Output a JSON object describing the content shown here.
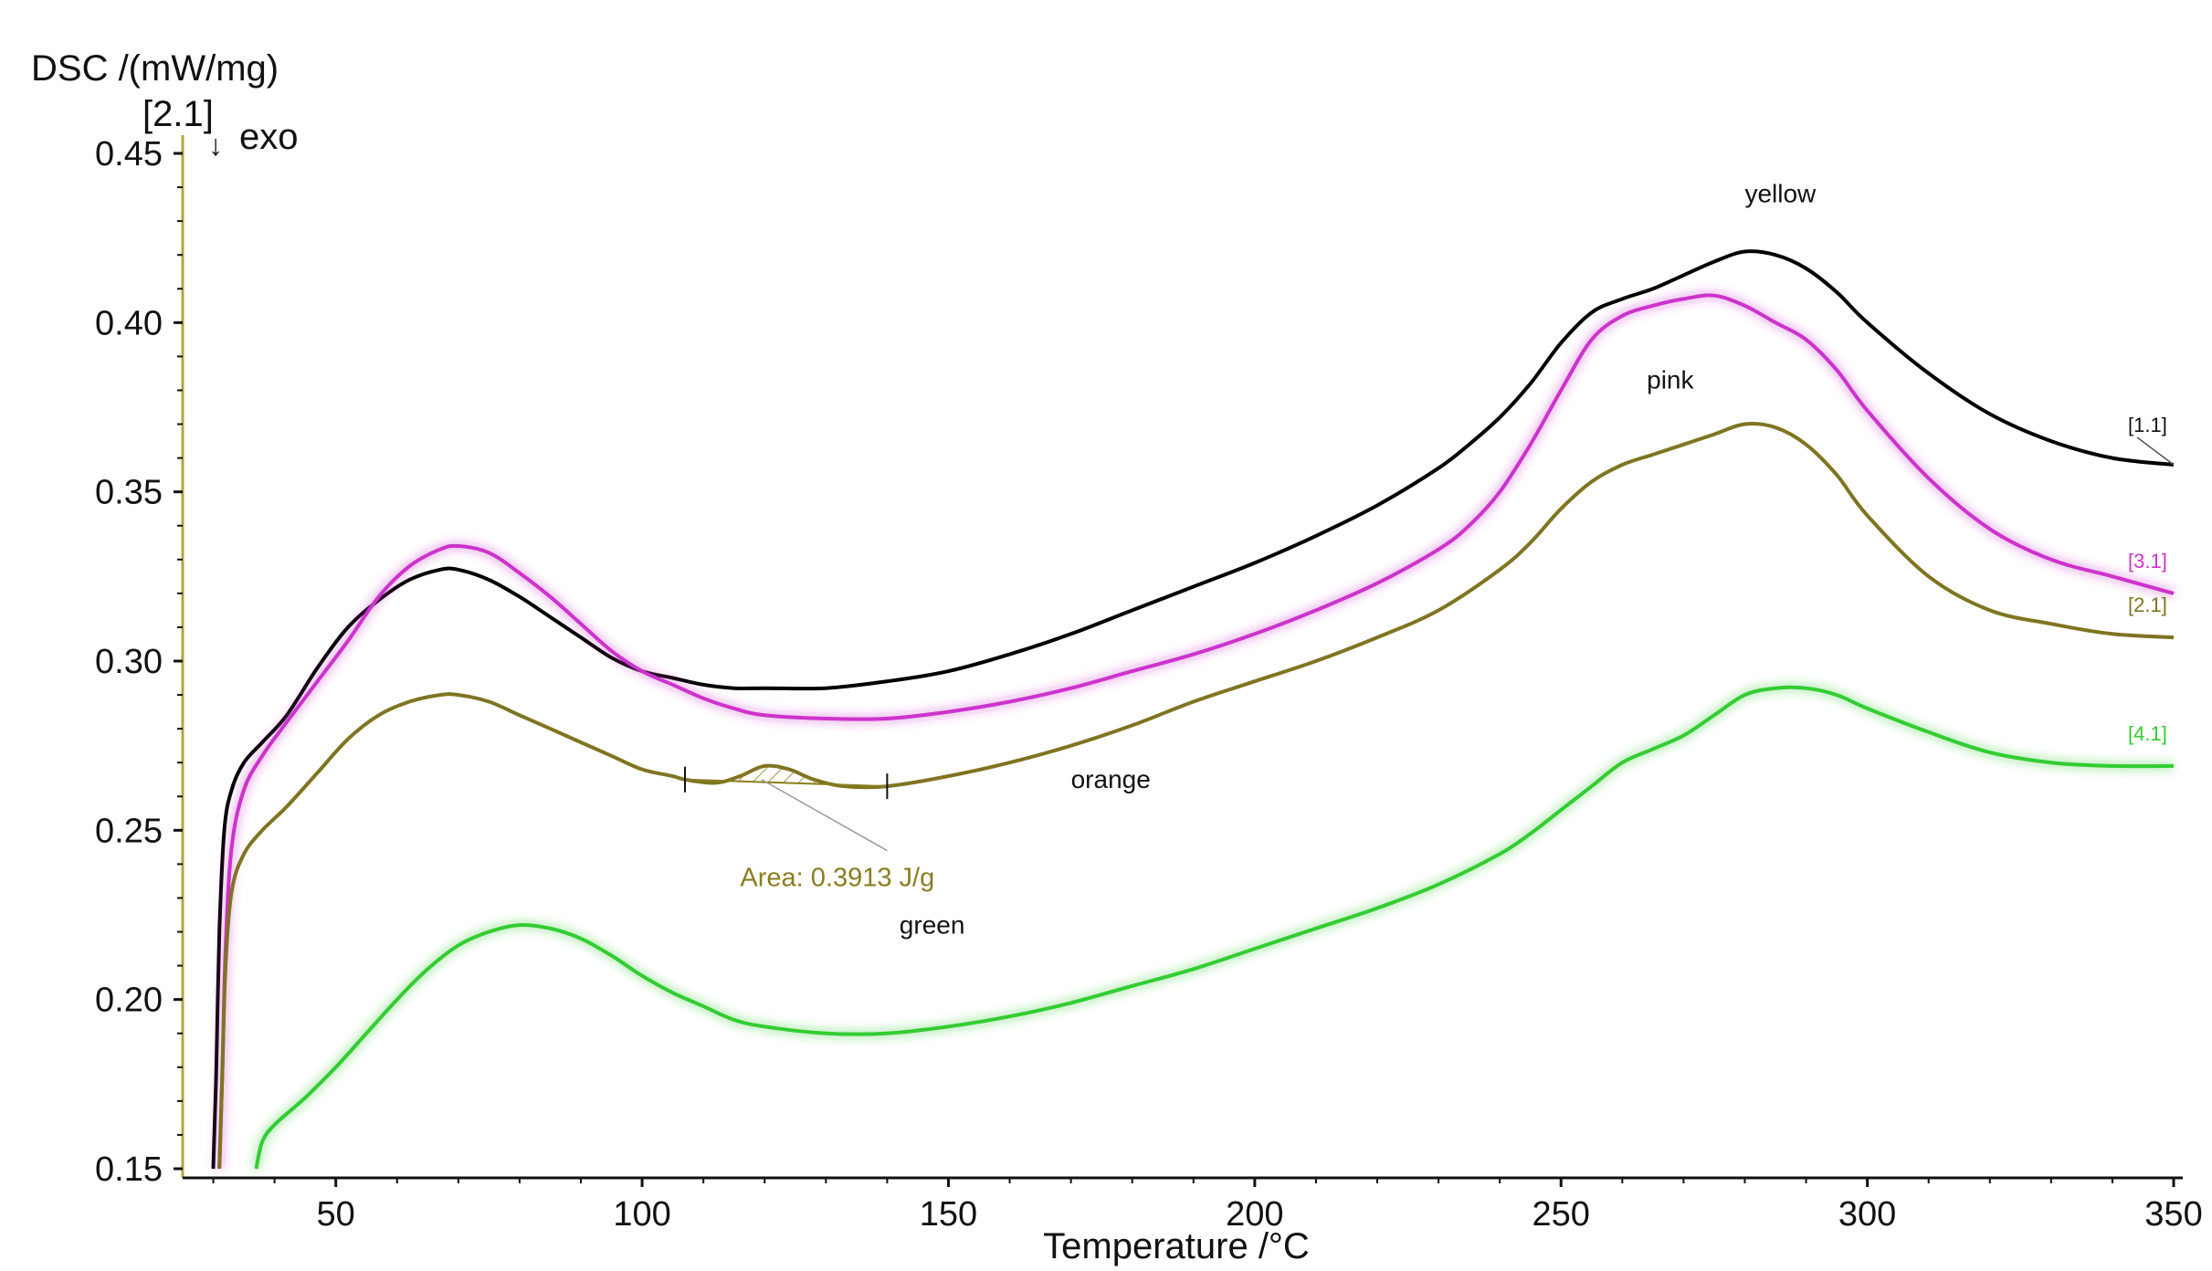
{
  "chart_data": {
    "type": "line",
    "ylabel": "DSC /(mW/mg)",
    "xlabel": "Temperature /°C",
    "exo_marker": {
      "tag": "[2.1]",
      "arrow": "↓",
      "label": "exo"
    },
    "xlim": [
      25,
      350
    ],
    "ylim": [
      0.15,
      0.45
    ],
    "xticks": [
      50,
      100,
      150,
      200,
      250,
      300,
      350
    ],
    "yticks": [
      0.15,
      0.2,
      0.25,
      0.3,
      0.35,
      0.4,
      0.45
    ],
    "ytick_labels": [
      "0.15",
      "0.20",
      "0.25",
      "0.30",
      "0.35",
      "0.40",
      "0.45"
    ],
    "grid": false,
    "axis_color": "#b3a640",
    "series": [
      {
        "tag": "[1.1]",
        "label": "yellow",
        "color": "#000000",
        "glow": false,
        "x": [
          30,
          30.5,
          31,
          31.8,
          33,
          35,
          38,
          42,
          47,
          52,
          57,
          62,
          67,
          70,
          75,
          80,
          85,
          90,
          95,
          100,
          105,
          110,
          115,
          120,
          130,
          140,
          150,
          160,
          170,
          180,
          190,
          200,
          210,
          220,
          230,
          235,
          240,
          245,
          250,
          255,
          260,
          265,
          270,
          275,
          280,
          285,
          290,
          295,
          300,
          310,
          320,
          330,
          340,
          350
        ],
        "y": [
          0.15,
          0.18,
          0.22,
          0.25,
          0.262,
          0.27,
          0.276,
          0.284,
          0.298,
          0.31,
          0.318,
          0.324,
          0.327,
          0.327,
          0.324,
          0.319,
          0.313,
          0.307,
          0.301,
          0.297,
          0.295,
          0.293,
          0.292,
          0.292,
          0.292,
          0.294,
          0.297,
          0.302,
          0.308,
          0.315,
          0.322,
          0.329,
          0.337,
          0.346,
          0.357,
          0.364,
          0.372,
          0.382,
          0.394,
          0.403,
          0.407,
          0.41,
          0.414,
          0.418,
          0.421,
          0.42,
          0.416,
          0.409,
          0.4,
          0.385,
          0.373,
          0.365,
          0.36,
          0.358
        ]
      },
      {
        "tag": "[3.1]",
        "label": "pink",
        "color": "#cc33cc",
        "glow": true,
        "x": [
          31,
          31.5,
          32,
          33,
          35,
          38,
          42,
          47,
          52,
          57,
          62,
          67,
          70,
          75,
          80,
          85,
          90,
          95,
          100,
          105,
          110,
          115,
          120,
          130,
          140,
          150,
          160,
          170,
          180,
          190,
          200,
          210,
          220,
          230,
          235,
          240,
          245,
          250,
          255,
          260,
          265,
          270,
          275,
          280,
          285,
          290,
          295,
          300,
          310,
          320,
          330,
          340,
          350
        ],
        "y": [
          0.15,
          0.18,
          0.215,
          0.245,
          0.262,
          0.272,
          0.282,
          0.294,
          0.306,
          0.319,
          0.328,
          0.333,
          0.334,
          0.332,
          0.326,
          0.319,
          0.311,
          0.303,
          0.297,
          0.293,
          0.289,
          0.286,
          0.284,
          0.283,
          0.283,
          0.285,
          0.288,
          0.292,
          0.297,
          0.302,
          0.308,
          0.315,
          0.323,
          0.333,
          0.34,
          0.35,
          0.364,
          0.38,
          0.395,
          0.402,
          0.405,
          0.407,
          0.408,
          0.405,
          0.4,
          0.395,
          0.386,
          0.374,
          0.354,
          0.339,
          0.33,
          0.325,
          0.32
        ]
      },
      {
        "tag": "[2.1]",
        "label": "orange",
        "color": "#7f7420",
        "glow": false,
        "x": [
          31,
          31.5,
          32,
          33,
          35,
          38,
          42,
          47,
          52,
          57,
          62,
          67,
          70,
          75,
          80,
          85,
          90,
          95,
          100,
          105,
          107,
          112,
          116,
          120,
          124,
          128,
          133,
          140,
          150,
          160,
          170,
          180,
          190,
          200,
          210,
          220,
          230,
          240,
          245,
          250,
          255,
          260,
          265,
          270,
          275,
          280,
          285,
          290,
          295,
          300,
          310,
          320,
          330,
          340,
          350
        ],
        "y": [
          0.15,
          0.18,
          0.21,
          0.232,
          0.243,
          0.25,
          0.257,
          0.267,
          0.277,
          0.284,
          0.288,
          0.29,
          0.29,
          0.288,
          0.284,
          0.28,
          0.276,
          0.272,
          0.268,
          0.266,
          0.265,
          0.264,
          0.266,
          0.269,
          0.268,
          0.265,
          0.263,
          0.263,
          0.266,
          0.27,
          0.275,
          0.281,
          0.288,
          0.294,
          0.3,
          0.307,
          0.315,
          0.327,
          0.335,
          0.345,
          0.353,
          0.358,
          0.361,
          0.364,
          0.367,
          0.37,
          0.369,
          0.364,
          0.355,
          0.343,
          0.325,
          0.315,
          0.311,
          0.308,
          0.307
        ]
      },
      {
        "tag": "[4.1]",
        "label": "green",
        "color": "#33cc33",
        "glow": true,
        "x": [
          37,
          38,
          40,
          45,
          50,
          55,
          60,
          65,
          70,
          75,
          80,
          85,
          90,
          95,
          100,
          105,
          110,
          115,
          120,
          130,
          140,
          150,
          160,
          170,
          180,
          190,
          200,
          210,
          220,
          230,
          240,
          245,
          250,
          255,
          260,
          265,
          270,
          275,
          280,
          285,
          290,
          295,
          300,
          310,
          320,
          330,
          340,
          350
        ],
        "y": [
          0.15,
          0.158,
          0.163,
          0.171,
          0.18,
          0.19,
          0.2,
          0.209,
          0.216,
          0.22,
          0.222,
          0.221,
          0.218,
          0.213,
          0.207,
          0.202,
          0.198,
          0.194,
          0.192,
          0.19,
          0.19,
          0.192,
          0.195,
          0.199,
          0.204,
          0.209,
          0.215,
          0.221,
          0.227,
          0.234,
          0.243,
          0.249,
          0.256,
          0.263,
          0.27,
          0.274,
          0.278,
          0.284,
          0.29,
          0.292,
          0.292,
          0.29,
          0.286,
          0.279,
          0.273,
          0.27,
          0.269,
          0.269
        ]
      }
    ],
    "peak_area": {
      "label": "Area: 0.3913 J/g",
      "color": "#8a7d20",
      "from": [
        107,
        0.265
      ],
      "to": [
        140,
        0.263
      ]
    },
    "series_labels": [
      {
        "text": "yellow",
        "x": 280,
        "y": 0.4355
      },
      {
        "text": "pink",
        "x": 264,
        "y": 0.3805
      },
      {
        "text": "orange",
        "x": 170,
        "y": 0.2625
      },
      {
        "text": "green",
        "x": 142,
        "y": 0.2195
      }
    ]
  }
}
